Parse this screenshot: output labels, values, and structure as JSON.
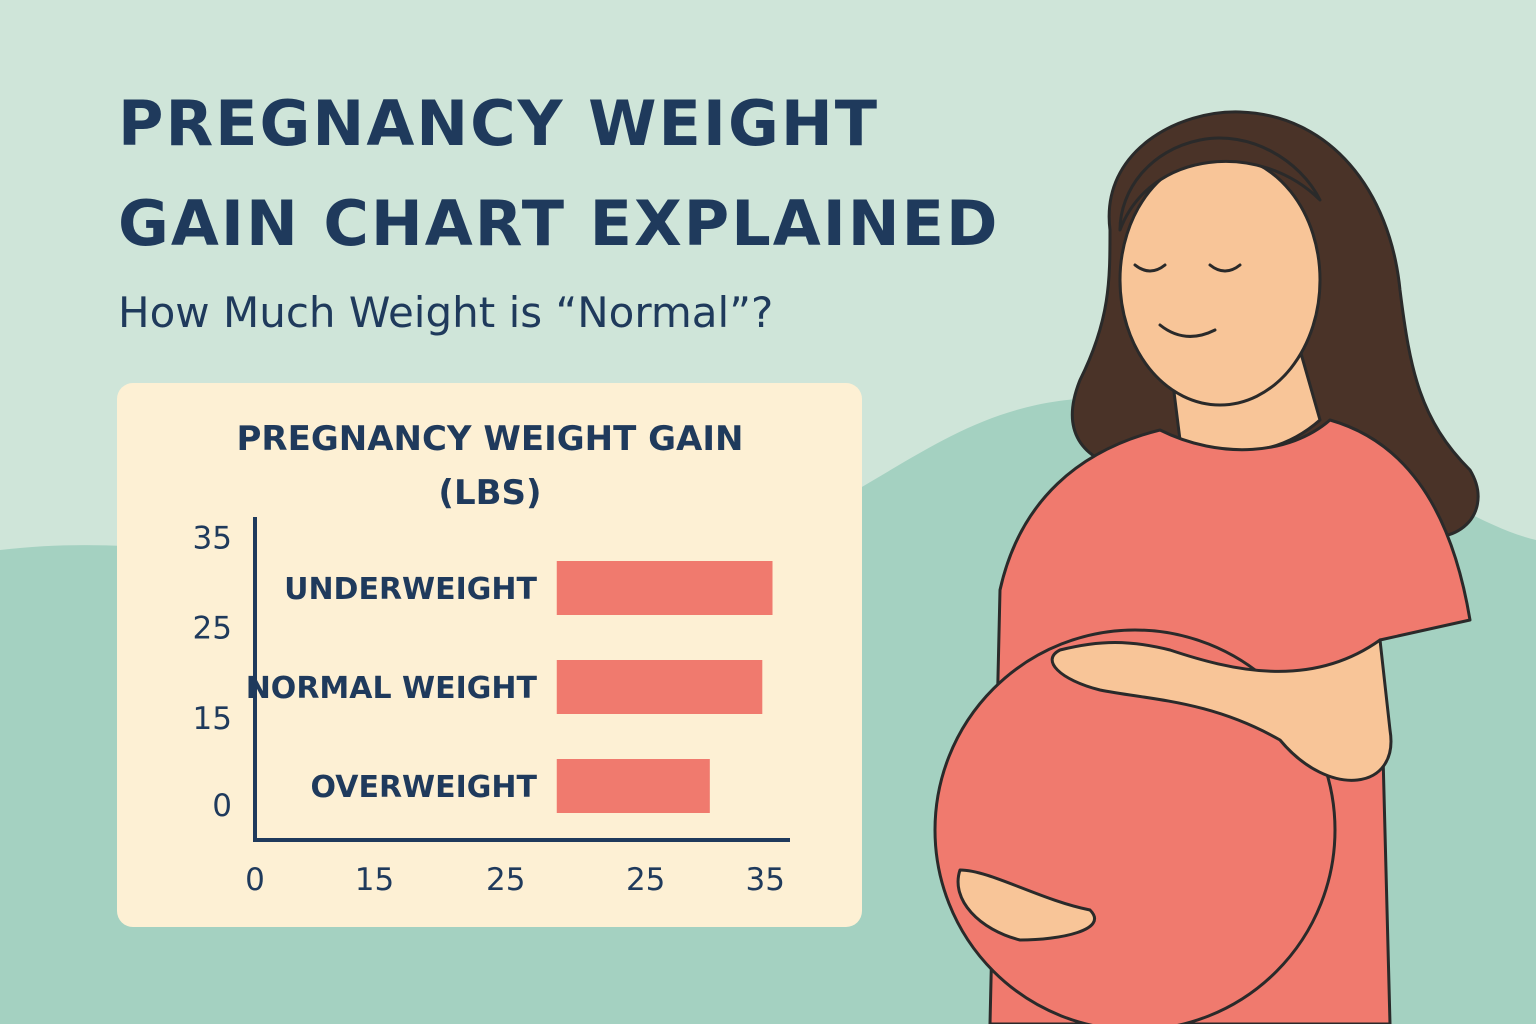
{
  "header": {
    "title_lines": [
      "PREGNANCY WEIGHT",
      "GAIN CHART EXPLAINED"
    ],
    "subtitle": "How Much Weight is “Normal”?"
  },
  "chart_data": {
    "type": "floating-bar",
    "orientation": "horizontal",
    "title_lines": [
      "PREGNANCY WEIGHT GAIN",
      "(LBS)"
    ],
    "categories": [
      "UNDERWEIGHT",
      "NORMAL WEIGHT",
      "OVERWEIGHT"
    ],
    "starts": [
      20.7,
      20.7,
      20.7
    ],
    "values": [
      35.5,
      34.8,
      31.2
    ],
    "color": "#f07a6e",
    "xlim": [
      0,
      36.7
    ],
    "xticks": [
      0,
      {
        "value": 8.2,
        "label": "15"
      },
      {
        "value": 17.2,
        "label": "25"
      },
      {
        "value": 26.8,
        "label": "25"
      },
      35
    ],
    "ylim": [
      -4.6,
      37.7
    ],
    "yticks": [
      {
        "value": 35,
        "label": "35"
      },
      {
        "value": 23.2,
        "label": "25"
      },
      {
        "value": 11.4,
        "label": "15"
      },
      0
    ],
    "grid": false
  }
}
